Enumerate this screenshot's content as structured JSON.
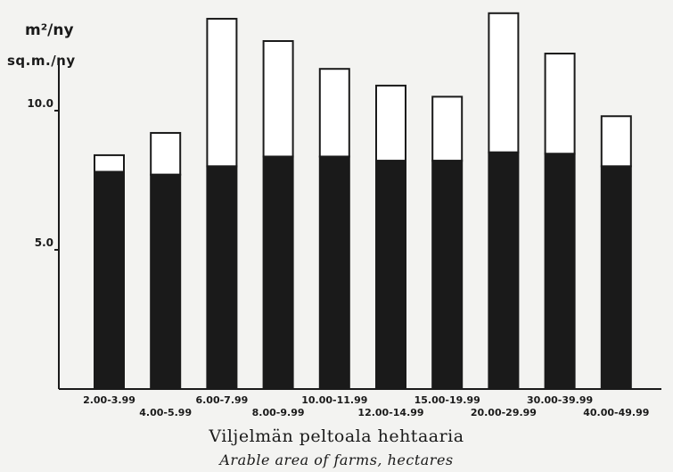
{
  "chart_data": {
    "type": "bar",
    "stacked": true,
    "categories": [
      "2.00-3.99",
      "4.00-5.99",
      "6.00-7.99",
      "8.00-9.99",
      "10.00-11.99",
      "12.00-14.99",
      "15.00-19.99",
      "20.00-29.99",
      "30.00-39.99",
      "40.00-49.99"
    ],
    "series": [
      {
        "values": [
          7.8,
          7.7,
          8.0,
          8.35,
          8.35,
          8.2,
          8.2,
          8.5,
          8.45,
          8.0
        ],
        "color": "#1a1a1a"
      },
      {
        "values": [
          0.6,
          1.5,
          5.3,
          4.15,
          3.15,
          2.7,
          2.3,
          5.0,
          3.6,
          1.8
        ],
        "color": "#ffffff"
      }
    ],
    "totals": [
      8.4,
      9.2,
      13.3,
      12.5,
      11.5,
      10.9,
      10.5,
      13.5,
      12.05,
      9.8
    ],
    "ylabel": [
      "m²/ny",
      "sq.m./ny"
    ],
    "xlabel": [
      "Viljelmän peltoala hehtaaria",
      "Arable area of farms, hectares"
    ],
    "yticks": [
      "5.0",
      "10.0"
    ],
    "ylim": [
      0,
      13.8
    ],
    "grid": false
  }
}
